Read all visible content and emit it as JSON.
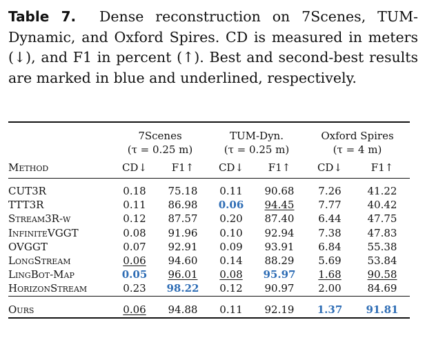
{
  "caption": {
    "label": "Table 7.",
    "text": "Dense reconstruction on 7Scenes, TUM-Dynamic, and Oxford Spires. CD is measured in meters (↓), and F1 in percent (↑). Best and second-best results are marked in blue and underlined, respectively."
  },
  "table": {
    "method_header": "Method",
    "groups": [
      {
        "name": "7Scenes",
        "tau": "(τ = 0.25 m)"
      },
      {
        "name": "TUM-Dyn.",
        "tau": "(τ = 0.25 m)"
      },
      {
        "name": "Oxford Spires",
        "tau": "(τ = 4 m)"
      }
    ],
    "metrics": [
      "CD↓",
      "F1↑",
      "CD↓",
      "F1↑",
      "CD↓",
      "F1↑"
    ],
    "rows": [
      {
        "method": "CUT3R",
        "values": [
          "0.18",
          "75.18",
          "0.11",
          "90.68",
          "7.26",
          "41.22"
        ],
        "styles": [
          "",
          "",
          "",
          "",
          "",
          ""
        ]
      },
      {
        "method": "TTT3R",
        "values": [
          "0.11",
          "86.98",
          "0.06",
          "94.45",
          "7.77",
          "40.42"
        ],
        "styles": [
          "",
          "",
          "best",
          "second",
          "",
          ""
        ]
      },
      {
        "method": "Stream3R-w",
        "values": [
          "0.12",
          "87.57",
          "0.20",
          "87.40",
          "6.44",
          "47.75"
        ],
        "styles": [
          "",
          "",
          "",
          "",
          "",
          ""
        ]
      },
      {
        "method": "InfiniteVGGT",
        "values": [
          "0.08",
          "91.96",
          "0.10",
          "92.94",
          "7.38",
          "47.83"
        ],
        "styles": [
          "",
          "",
          "",
          "",
          "",
          ""
        ]
      },
      {
        "method": "OVGGT",
        "values": [
          "0.07",
          "92.91",
          "0.09",
          "93.91",
          "6.84",
          "55.38"
        ],
        "styles": [
          "",
          "",
          "",
          "",
          "",
          ""
        ]
      },
      {
        "method": "LongStream",
        "values": [
          "0.06",
          "94.60",
          "0.14",
          "88.29",
          "5.69",
          "53.84"
        ],
        "styles": [
          "second",
          "",
          "",
          "",
          "",
          ""
        ]
      },
      {
        "method": "LingBot-Map",
        "values": [
          "0.05",
          "96.01",
          "0.08",
          "95.97",
          "1.68",
          "90.58"
        ],
        "styles": [
          "best",
          "second",
          "second",
          "best",
          "second",
          "second"
        ]
      },
      {
        "method": "HorizonStream",
        "values": [
          "0.23",
          "98.22",
          "0.12",
          "90.97",
          "2.00",
          "84.69"
        ],
        "styles": [
          "",
          "best",
          "",
          "",
          "",
          ""
        ]
      }
    ],
    "ours": {
      "method": "Ours",
      "values": [
        "0.06",
        "94.88",
        "0.11",
        "92.19",
        "1.37",
        "91.81"
      ],
      "styles": [
        "second",
        "",
        "",
        "",
        "best",
        "best"
      ]
    },
    "colors": {
      "best": "#2e6db5",
      "text": "#111111"
    }
  }
}
